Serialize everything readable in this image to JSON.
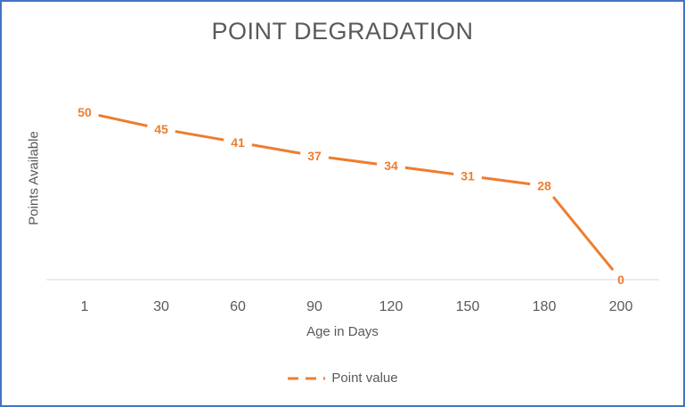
{
  "chart_data": {
    "type": "line",
    "title": "POINT DEGRADATION",
    "xlabel": "Age in Days",
    "ylabel": "Points Available",
    "categories": [
      "1",
      "30",
      "60",
      "90",
      "120",
      "150",
      "180",
      "200"
    ],
    "series": [
      {
        "name": "Point value",
        "values": [
          50,
          45,
          41,
          37,
          34,
          31,
          28,
          0
        ],
        "color": "#ed7d31"
      }
    ],
    "ylim": [
      0,
      50
    ],
    "grid": false,
    "legend_position": "bottom",
    "data_labels": true
  }
}
